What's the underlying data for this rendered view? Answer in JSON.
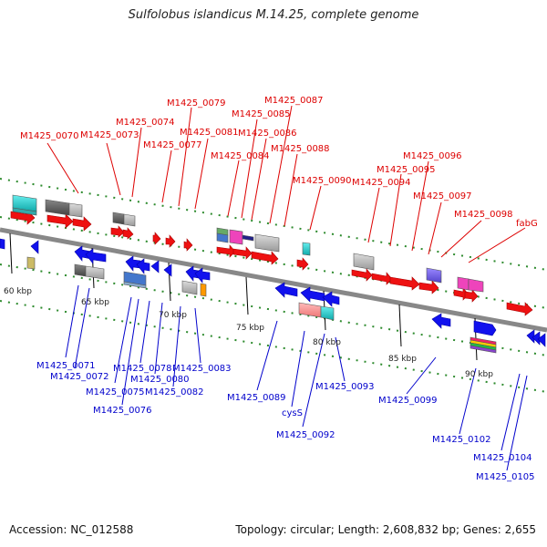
{
  "title": "Sulfolobus islandicus M.14.25, complete genome",
  "accession": "Accession: NC_012588",
  "summary": "Topology: circular; Length: 2,608,832 bp; Genes: 2,655",
  "kbp_labels": [
    "60 kbp",
    "65 kbp",
    "70 kbp",
    "75 kbp",
    "80 kbp",
    "85 kbp",
    "90 kbp"
  ],
  "top_labels": [
    "M1425_0070",
    "M1425_0073",
    "M1425_0074",
    "M1425_0077",
    "M1425_0079",
    "M1425_0081",
    "M1425_0084",
    "M1425_0085",
    "M1425_0086",
    "M1425_0087",
    "M1425_0088",
    "M1425_0090",
    "M1425_0094",
    "M1425_0095",
    "M1425_0096",
    "M1425_0097",
    "M1425_0098",
    "fabG"
  ],
  "bottom_labels": [
    "M1425_0071",
    "M1425_0072",
    "M1425_0075",
    "M1425_0076",
    "M1425_0078",
    "M1425_0080",
    "M1425_0082",
    "M1425_0083",
    "M1425_0089",
    "cysS",
    "M1425_0092",
    "M1425_0093",
    "M1425_0099",
    "M1425_0102",
    "M1425_0104",
    "M1425_0105"
  ],
  "colors": {
    "forward": "#ee1111",
    "reverse": "#1111ee",
    "top_label": "#dd0000",
    "bottom_label": "#0000cc",
    "backbone": "#888888",
    "tick_dot": "#2e8b2e"
  }
}
